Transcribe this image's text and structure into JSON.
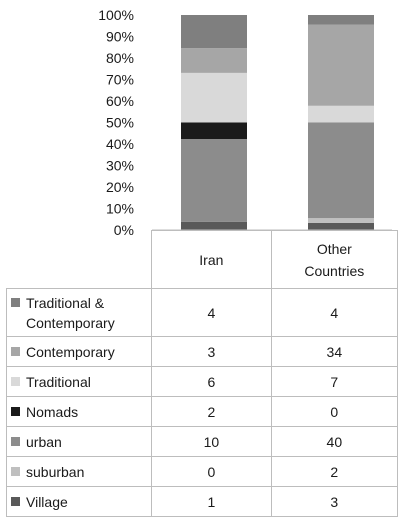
{
  "chart_data": {
    "type": "bar",
    "stacked": "percent",
    "categories": [
      "Iran",
      "Other\nCountries"
    ],
    "category_labels": [
      [
        "Iran"
      ],
      [
        "Other",
        "Countries"
      ]
    ],
    "y_ticks": [
      "0%",
      "10%",
      "20%",
      "30%",
      "40%",
      "50%",
      "60%",
      "70%",
      "80%",
      "90%",
      "100%"
    ],
    "ylim": [
      0,
      100
    ],
    "series": [
      {
        "name": "Village",
        "label_lines": [
          "Village"
        ],
        "values": [
          1,
          3
        ],
        "color": "#595959"
      },
      {
        "name": "suburban",
        "label_lines": [
          "suburban"
        ],
        "values": [
          0,
          2
        ],
        "color": "#bfbfbf"
      },
      {
        "name": "urban",
        "label_lines": [
          "urban"
        ],
        "values": [
          10,
          40
        ],
        "color": "#8c8c8c"
      },
      {
        "name": "Nomads",
        "label_lines": [
          "Nomads"
        ],
        "values": [
          2,
          0
        ],
        "color": "#1a1a1a"
      },
      {
        "name": "Traditional",
        "label_lines": [
          "Traditional"
        ],
        "values": [
          6,
          7
        ],
        "color": "#d9d9d9"
      },
      {
        "name": "Contemporary",
        "label_lines": [
          "Contemporary"
        ],
        "values": [
          3,
          34
        ],
        "color": "#a6a6a6"
      },
      {
        "name": "Traditional & Contemporary",
        "label_lines": [
          "Traditional &",
          "Contemporary"
        ],
        "values": [
          4,
          4
        ],
        "color": "#7f7f7f"
      }
    ],
    "legend": "data-table",
    "grid": false
  }
}
